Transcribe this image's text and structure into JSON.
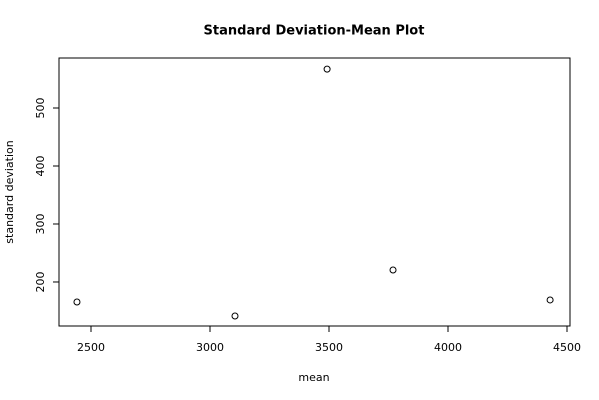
{
  "chart_data": {
    "type": "scatter",
    "title": "Standard Deviation-Mean Plot",
    "x_label": "mean",
    "y_label": "standard deviation",
    "x": [
      2441,
      3105,
      3492,
      3769,
      4429
    ],
    "values": [
      165.5,
      141.4,
      567,
      220.7,
      169
    ],
    "xlim": [
      2365.5,
      4512.6
    ],
    "ylim": [
      124.1,
      586.2
    ],
    "xticks": [
      2500,
      3000,
      3500,
      4000,
      4500
    ],
    "yticks": [
      200,
      300,
      400,
      500
    ],
    "color": "#000000",
    "grid": false
  }
}
